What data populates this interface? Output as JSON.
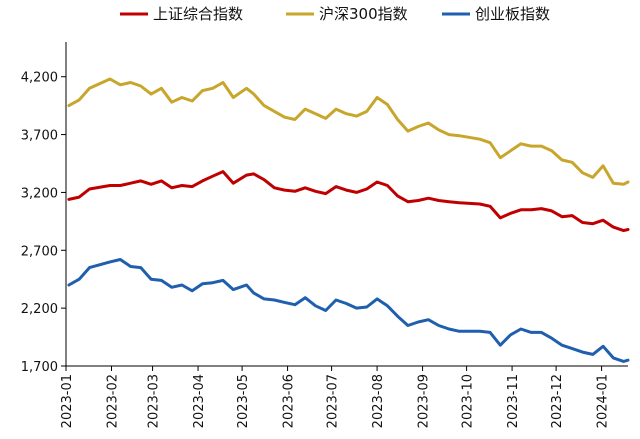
{
  "chart_data": {
    "type": "line",
    "title": "",
    "xlabel": "",
    "ylabel": "",
    "x_ticks": [
      "2023-01",
      "2023-02",
      "2023-03",
      "2023-04",
      "2023-05",
      "2023-06",
      "2023-07",
      "2023-08",
      "2023-09",
      "2023-10",
      "2023-11",
      "2023-12",
      "2024-01"
    ],
    "y_ticks": [
      1700,
      2200,
      2700,
      3200,
      3700,
      4200
    ],
    "y_tick_labels": [
      "1,700",
      "2,200",
      "2,700",
      "3,200",
      "3,700",
      "4,200"
    ],
    "ylim": [
      1700,
      4500
    ],
    "xlim": [
      "2023-01-01",
      "2024-01-19"
    ],
    "grid": false,
    "legend_position": "top",
    "series": [
      {
        "name": "上证综合指数",
        "color": "#c00000",
        "x": [
          "2023-01-03",
          "2023-01-10",
          "2023-01-17",
          "2023-01-31",
          "2023-02-07",
          "2023-02-14",
          "2023-02-21",
          "2023-02-28",
          "2023-03-07",
          "2023-03-14",
          "2023-03-21",
          "2023-03-28",
          "2023-04-04",
          "2023-04-11",
          "2023-04-18",
          "2023-04-25",
          "2023-05-04",
          "2023-05-09",
          "2023-05-16",
          "2023-05-23",
          "2023-05-30",
          "2023-06-06",
          "2023-06-13",
          "2023-06-20",
          "2023-06-27",
          "2023-07-04",
          "2023-07-11",
          "2023-07-18",
          "2023-07-25",
          "2023-08-01",
          "2023-08-08",
          "2023-08-15",
          "2023-08-22",
          "2023-08-29",
          "2023-09-05",
          "2023-09-12",
          "2023-09-19",
          "2023-09-26",
          "2023-10-10",
          "2023-10-17",
          "2023-10-24",
          "2023-10-31",
          "2023-11-07",
          "2023-11-14",
          "2023-11-21",
          "2023-11-28",
          "2023-12-05",
          "2023-12-12",
          "2023-12-19",
          "2023-12-26",
          "2024-01-02",
          "2024-01-09",
          "2024-01-16",
          "2024-01-19"
        ],
        "values": [
          3140,
          3160,
          3230,
          3260,
          3260,
          3280,
          3300,
          3270,
          3300,
          3240,
          3260,
          3250,
          3300,
          3340,
          3380,
          3280,
          3350,
          3360,
          3310,
          3240,
          3220,
          3210,
          3240,
          3210,
          3190,
          3250,
          3220,
          3200,
          3230,
          3290,
          3260,
          3170,
          3120,
          3130,
          3150,
          3130,
          3120,
          3110,
          3100,
          3080,
          2980,
          3020,
          3050,
          3050,
          3060,
          3040,
          2990,
          3000,
          2940,
          2930,
          2960,
          2900,
          2870,
          2880
        ]
      },
      {
        "name": "沪深300指数",
        "color": "#c8a62b",
        "x": [
          "2023-01-03",
          "2023-01-10",
          "2023-01-17",
          "2023-01-31",
          "2023-02-07",
          "2023-02-14",
          "2023-02-21",
          "2023-02-28",
          "2023-03-07",
          "2023-03-14",
          "2023-03-21",
          "2023-03-28",
          "2023-04-04",
          "2023-04-11",
          "2023-04-18",
          "2023-04-25",
          "2023-05-04",
          "2023-05-09",
          "2023-05-16",
          "2023-05-23",
          "2023-05-30",
          "2023-06-06",
          "2023-06-13",
          "2023-06-20",
          "2023-06-27",
          "2023-07-04",
          "2023-07-11",
          "2023-07-18",
          "2023-07-25",
          "2023-08-01",
          "2023-08-08",
          "2023-08-15",
          "2023-08-22",
          "2023-08-29",
          "2023-09-05",
          "2023-09-12",
          "2023-09-19",
          "2023-09-26",
          "2023-10-10",
          "2023-10-17",
          "2023-10-24",
          "2023-10-31",
          "2023-11-07",
          "2023-11-14",
          "2023-11-21",
          "2023-11-28",
          "2023-12-05",
          "2023-12-12",
          "2023-12-19",
          "2023-12-26",
          "2024-01-02",
          "2024-01-09",
          "2024-01-16",
          "2024-01-19"
        ],
        "values": [
          3950,
          4000,
          4100,
          4180,
          4130,
          4150,
          4120,
          4050,
          4100,
          3980,
          4020,
          3990,
          4080,
          4100,
          4150,
          4020,
          4100,
          4050,
          3950,
          3900,
          3850,
          3830,
          3920,
          3880,
          3840,
          3920,
          3880,
          3860,
          3900,
          4020,
          3960,
          3830,
          3730,
          3770,
          3800,
          3740,
          3700,
          3690,
          3660,
          3630,
          3500,
          3560,
          3620,
          3600,
          3600,
          3560,
          3480,
          3460,
          3370,
          3330,
          3430,
          3280,
          3270,
          3290
        ]
      },
      {
        "name": "创业板指数",
        "color": "#1f5fad",
        "x": [
          "2023-01-03",
          "2023-01-10",
          "2023-01-17",
          "2023-01-31",
          "2023-02-07",
          "2023-02-14",
          "2023-02-21",
          "2023-02-28",
          "2023-03-07",
          "2023-03-14",
          "2023-03-21",
          "2023-03-28",
          "2023-04-04",
          "2023-04-11",
          "2023-04-18",
          "2023-04-25",
          "2023-05-04",
          "2023-05-09",
          "2023-05-16",
          "2023-05-23",
          "2023-05-30",
          "2023-06-06",
          "2023-06-13",
          "2023-06-20",
          "2023-06-27",
          "2023-07-04",
          "2023-07-11",
          "2023-07-18",
          "2023-07-25",
          "2023-08-01",
          "2023-08-08",
          "2023-08-15",
          "2023-08-22",
          "2023-08-29",
          "2023-09-05",
          "2023-09-12",
          "2023-09-19",
          "2023-09-26",
          "2023-10-10",
          "2023-10-17",
          "2023-10-24",
          "2023-10-31",
          "2023-11-07",
          "2023-11-14",
          "2023-11-21",
          "2023-11-28",
          "2023-12-05",
          "2023-12-12",
          "2023-12-19",
          "2023-12-26",
          "2024-01-02",
          "2024-01-09",
          "2024-01-16",
          "2024-01-19"
        ],
        "values": [
          2400,
          2450,
          2550,
          2600,
          2620,
          2560,
          2550,
          2450,
          2440,
          2380,
          2400,
          2350,
          2410,
          2420,
          2440,
          2360,
          2400,
          2330,
          2280,
          2270,
          2250,
          2230,
          2290,
          2220,
          2180,
          2270,
          2240,
          2200,
          2210,
          2280,
          2220,
          2130,
          2050,
          2080,
          2100,
          2050,
          2020,
          2000,
          2000,
          1990,
          1880,
          1970,
          2020,
          1990,
          1990,
          1940,
          1880,
          1850,
          1820,
          1800,
          1870,
          1770,
          1740,
          1750
        ]
      }
    ]
  }
}
